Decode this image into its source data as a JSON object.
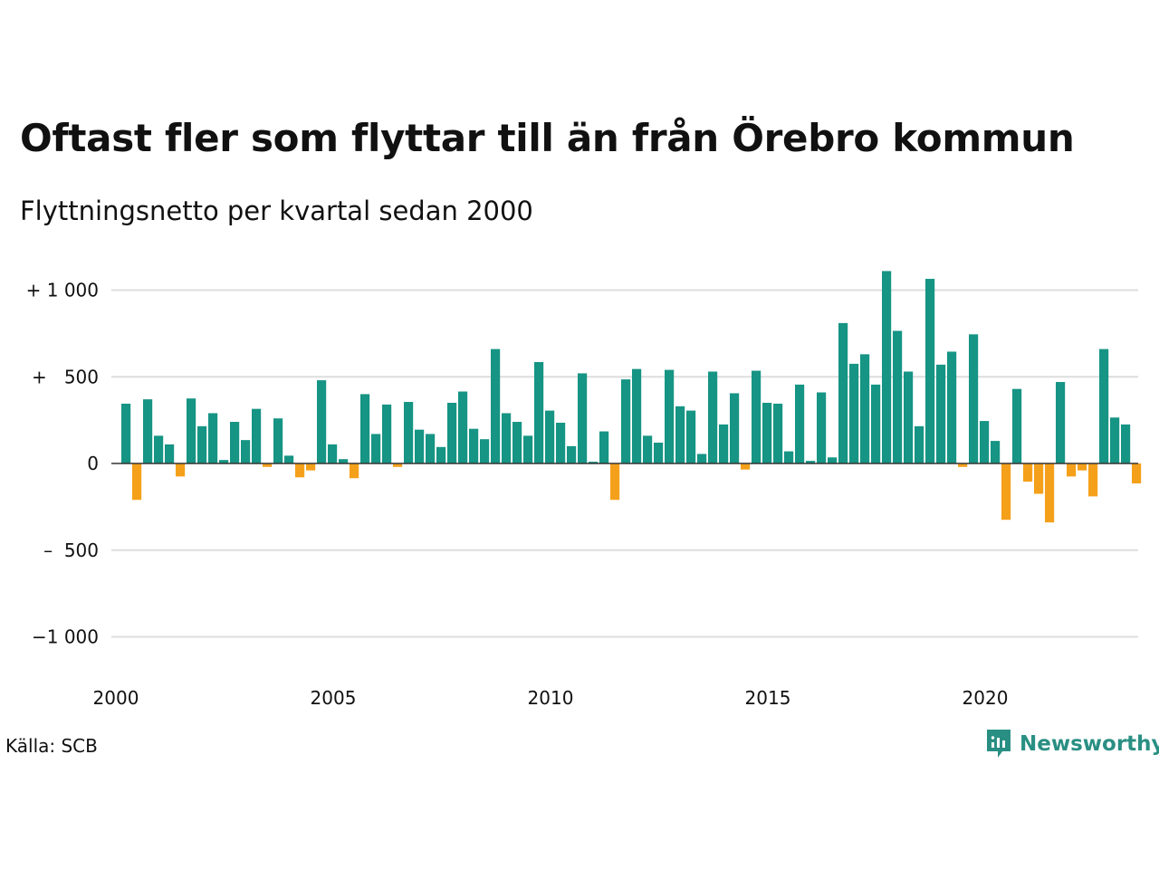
{
  "header": {
    "title": "Oftast fler som flyttar till än från Örebro kommun",
    "subtitle": "Flyttningsnetto per kvartal sedan 2000"
  },
  "footer": {
    "source": "Källa: SCB",
    "brand": "Newsworthy"
  },
  "colors": {
    "positive": "#169484",
    "negative": "#f5a01a",
    "grid": "#dddddd",
    "brand": "#2a8f83"
  },
  "chart_data": {
    "type": "bar",
    "title": "Oftast fler som flyttar till än från Örebro kommun",
    "subtitle": "Flyttningsnetto per kvartal sedan 2000",
    "xlabel": "",
    "ylabel": "",
    "ylim": [
      -1100,
      1150
    ],
    "yticks": [
      1000,
      500,
      0,
      -500,
      -1000
    ],
    "ytick_labels": [
      "+ 1 000",
      "+   500",
      "0",
      "–  500",
      "−1 000"
    ],
    "xticks": [
      2000,
      2005,
      2010,
      2015,
      2020
    ],
    "xtick_labels": [
      "2000",
      "2005",
      "2010",
      "2015",
      "2020"
    ],
    "x_start": "2000 Q1",
    "grid": true,
    "legend": "none",
    "values": [
      345,
      -210,
      370,
      160,
      110,
      -75,
      375,
      215,
      290,
      20,
      240,
      135,
      315,
      -20,
      260,
      45,
      -80,
      -40,
      480,
      110,
      25,
      -85,
      400,
      170,
      340,
      -20,
      355,
      195,
      170,
      95,
      350,
      415,
      200,
      140,
      660,
      290,
      240,
      160,
      585,
      305,
      235,
      100,
      520,
      10,
      185,
      -210,
      485,
      545,
      160,
      120,
      540,
      330,
      305,
      55,
      530,
      225,
      405,
      -35,
      535,
      350,
      345,
      70,
      455,
      15,
      410,
      35,
      810,
      575,
      630,
      455,
      1110,
      765,
      530,
      215,
      1065,
      570,
      645,
      -20,
      745,
      245,
      130,
      -325,
      430,
      -105,
      -175,
      -340,
      470,
      -75,
      -40,
      -190,
      660,
      265,
      225,
      -115
    ]
  }
}
